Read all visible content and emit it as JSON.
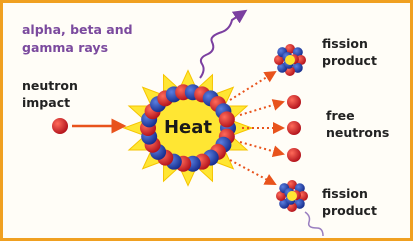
{
  "labels": {
    "radiation": [
      "alpha, beta and",
      "gamma rays"
    ],
    "neutron_impact": [
      "neutron",
      "impact"
    ],
    "heat": "Heat",
    "fission_product_top": [
      "fission",
      "product"
    ],
    "free_neutrons": [
      "free",
      "neutrons"
    ],
    "fission_product_bottom": [
      "fission",
      "product"
    ]
  }
}
